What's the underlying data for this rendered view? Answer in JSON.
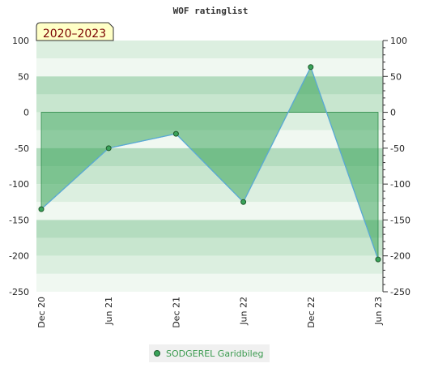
{
  "chart_data": {
    "type": "area",
    "title": "WOF ratinglist",
    "badge": "2020–2023",
    "x": [
      "Dec 20",
      "Jun 21",
      "Dec 21",
      "Jun 22",
      "Dec 22",
      "Jun 23"
    ],
    "series": [
      {
        "name": "SODGEREL Garidbileg",
        "values": [
          -135,
          -50,
          -30,
          -125,
          63,
          -205
        ]
      }
    ],
    "ylim": [
      -250,
      100
    ],
    "yticks": [
      100,
      50,
      0,
      -50,
      -100,
      -150,
      -200,
      -250
    ],
    "grid": true,
    "legend_position": "bottom",
    "colors": {
      "line": "#5aa9d6",
      "fill": "#3ea55c",
      "marker": "#3aa35a",
      "badge_bg": "#ffffc6"
    }
  }
}
